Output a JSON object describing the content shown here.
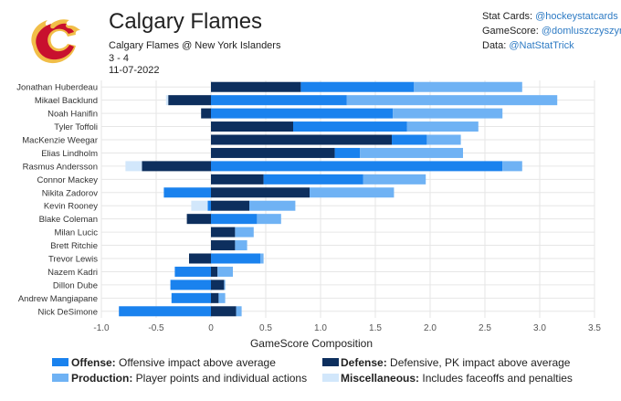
{
  "header": {
    "title": "Calgary Flames",
    "matchup": "Calgary Flames @ New York Islanders",
    "score": "3 - 4",
    "date": "11-07-2022"
  },
  "credits": [
    {
      "label": "Stat Cards: ",
      "handle": "@hockeystatcards"
    },
    {
      "label": "GameScore: ",
      "handle": "@domluszczyszyn"
    },
    {
      "label": "Data: ",
      "handle": "@NatStatTrick"
    }
  ],
  "colors": {
    "offense": "#1a82ee",
    "defense": "#0d2f5e",
    "production": "#6fb2f4",
    "misc": "#d2e7fb",
    "grid": "#e6e6e6",
    "logo_red": "#c8102e",
    "logo_gold": "#f1be48"
  },
  "legend": [
    {
      "key": "offense",
      "bold": "Offense:",
      "text": " Offensive impact above average"
    },
    {
      "key": "defense",
      "bold": "Defense:",
      "text": " Defensive, PK impact above average"
    },
    {
      "key": "production",
      "bold": "Production:",
      "text": " Player points and individual actions"
    },
    {
      "key": "misc",
      "bold": "Miscellaneous:",
      "text": " Includes faceoffs and penalties"
    }
  ],
  "chart_data": {
    "type": "bar",
    "orientation": "horizontal",
    "stacked": true,
    "xlabel": "GameScore Composition",
    "xlim": [
      -1.0,
      3.5
    ],
    "xticks": [
      -1.0,
      -0.5,
      0,
      0.5,
      1.0,
      1.5,
      2.0,
      2.5,
      3.0,
      3.5
    ],
    "xtick_labels": [
      "-1.0",
      "-0.5",
      "0",
      "0.5",
      "1.0",
      "1.5",
      "2.0",
      "2.5",
      "3.0",
      "3.5"
    ],
    "grid": true,
    "categories": [
      "Jonathan Huberdeau",
      "Mikael Backlund",
      "Noah Hanifin",
      "Tyler Toffoli",
      "MacKenzie Weegar",
      "Elias Lindholm",
      "Rasmus Andersson",
      "Connor Mackey",
      "Nikita Zadorov",
      "Kevin Rooney",
      "Blake Coleman",
      "Milan Lucic",
      "Brett Ritchie",
      "Trevor Lewis",
      "Nazem Kadri",
      "Dillon Dube",
      "Andrew Mangiapane",
      "Nick DeSimone"
    ],
    "series": [
      {
        "name": "Defense",
        "key": "defense",
        "values": [
          0.82,
          -0.39,
          -0.09,
          0.75,
          1.65,
          1.13,
          -0.63,
          0.48,
          0.9,
          0.35,
          -0.22,
          0.22,
          0.22,
          -0.2,
          0.06,
          0.12,
          0.07,
          0.23
        ]
      },
      {
        "name": "Offense",
        "key": "offense",
        "values": [
          1.03,
          1.24,
          1.66,
          1.04,
          0.32,
          0.23,
          2.66,
          0.91,
          -0.43,
          -0.03,
          0.42,
          0.0,
          0.0,
          0.45,
          -0.33,
          -0.37,
          -0.36,
          -0.84
        ]
      },
      {
        "name": "Production",
        "key": "production",
        "values": [
          0.99,
          1.92,
          1.0,
          0.65,
          0.31,
          0.94,
          0.18,
          0.57,
          0.77,
          0.42,
          0.22,
          0.17,
          0.11,
          0.03,
          0.14,
          0.01,
          0.06,
          0.05
        ]
      },
      {
        "name": "Miscellaneous",
        "key": "misc",
        "values": [
          0.0,
          -0.02,
          0.0,
          0.0,
          0.0,
          0.0,
          -0.15,
          0.0,
          0.0,
          -0.15,
          0.0,
          0.0,
          0.0,
          0.0,
          0.0,
          0.0,
          0.0,
          0.0
        ]
      }
    ]
  }
}
